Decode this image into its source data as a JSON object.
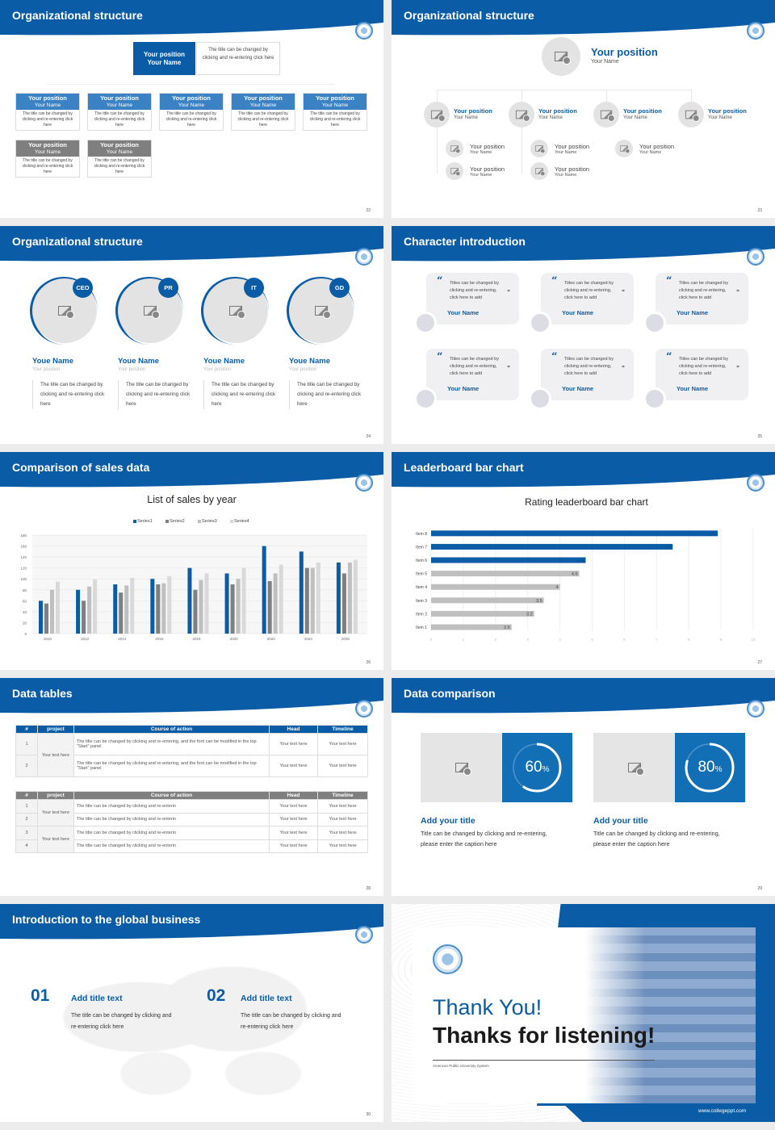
{
  "colors": {
    "brand": "#0b5ca6",
    "card_blue": "#3a82c4",
    "card_gray": "#7f7f7f",
    "placeholder": "#e3e3e3"
  },
  "s22": {
    "title": "Organizational structure",
    "page": "22",
    "top": {
      "position": "Your position",
      "name": "Your Name",
      "desc": "The title can be changed by clicking and re-entering click here"
    },
    "cards": [
      {
        "position": "Your position",
        "name": "Your Name",
        "desc": "The title can be changed by clicking and re-entering click here",
        "style": "blue"
      },
      {
        "position": "Your position",
        "name": "Your Name",
        "desc": "The title can be changed by clicking and re-entering click here",
        "style": "blue"
      },
      {
        "position": "Your position",
        "name": "Your Name",
        "desc": "The title can be changed by clicking and re-entering click here",
        "style": "blue"
      },
      {
        "position": "Your position",
        "name": "Your Name",
        "desc": "The title can be changed by clicking and re-entering click here",
        "style": "blue"
      },
      {
        "position": "Your position",
        "name": "Your Name",
        "desc": "The title can be changed by clicking and re-entering click here",
        "style": "blue"
      },
      {
        "position": "Your position",
        "name": "Your Name",
        "desc": "The title can be changed by clicking and re-entering click here",
        "style": "gray"
      },
      {
        "position": "Your position",
        "name": "Your Name",
        "desc": "The title can be changed by clicking and re-entering click here",
        "style": "gray"
      }
    ]
  },
  "s23": {
    "title": "Organizational structure",
    "page": "23",
    "top": {
      "position": "Your position",
      "name": "Your Name"
    },
    "mid": [
      {
        "position": "Your position",
        "name": "Your Name"
      },
      {
        "position": "Your position",
        "name": "Your Name"
      },
      {
        "position": "Your position",
        "name": "Your Name"
      },
      {
        "position": "Your position",
        "name": "Your Name"
      }
    ],
    "sub": [
      {
        "position": "Your position",
        "name": "Your Name"
      },
      {
        "position": "Your position",
        "name": "Your Name"
      },
      {
        "position": "Your position",
        "name": "Your Name"
      },
      {
        "position": "Your position",
        "name": "Your Name"
      },
      {
        "position": "Your position",
        "name": "Your Name"
      }
    ]
  },
  "s24": {
    "title": "Organizational structure",
    "page": "24",
    "people": [
      {
        "badge": "CEO",
        "name": "Youe Name",
        "position": "Your position",
        "desc": "The title can be changed by clicking and re-entering click here"
      },
      {
        "badge": "PR",
        "name": "Youe Name",
        "position": "Your position",
        "desc": "The title can be changed by clicking and re-entering click here"
      },
      {
        "badge": "IT",
        "name": "Youe Name",
        "position": "Your position",
        "desc": "The title can be changed by clicking and re-entering click here"
      },
      {
        "badge": "GD",
        "name": "Youe Name",
        "position": "Your position",
        "desc": "The title can be changed by clicking and re-entering click here"
      }
    ]
  },
  "s25": {
    "title": "Character introduction",
    "page": "25",
    "quotes": [
      {
        "text": "Titles can be changed by clicking and re-entering, click here to add",
        "name": "Your Name"
      },
      {
        "text": "Titles can be changed by clicking and re-entering, click here to add",
        "name": "Your Name"
      },
      {
        "text": "Titles can be changed by clicking and re-entering, click here to add",
        "name": "Your Name"
      },
      {
        "text": "Titles can be changed by clicking and re-entering, click here to add",
        "name": "Your Name"
      },
      {
        "text": "Titles can be changed by clicking and re-entering, click here to add",
        "name": "Your Name"
      },
      {
        "text": "Titles can be changed by clicking and re-entering, click here to add",
        "name": "Your Name"
      }
    ]
  },
  "s26": {
    "title": "Comparison of sales data",
    "page": "26"
  },
  "s27": {
    "title": "Leaderboard bar chart",
    "page": "27"
  },
  "chart_data": [
    {
      "type": "bar",
      "title": "List of sales by year",
      "legend": "top",
      "grid": true,
      "categories": [
        "2010",
        "2012",
        "2014",
        "2016",
        "2018",
        "2020",
        "2022",
        "2024",
        "2026"
      ],
      "ylim": [
        0,
        180
      ],
      "yticks": [
        0,
        20,
        40,
        60,
        80,
        100,
        120,
        140,
        160,
        180
      ],
      "series": [
        {
          "name": "Series1",
          "color": "#0b5ca6",
          "values": [
            60,
            80,
            90,
            100,
            120,
            110,
            160,
            150,
            130
          ]
        },
        {
          "name": "Series2",
          "color": "#7f7f7f",
          "values": [
            55,
            60,
            75,
            90,
            80,
            90,
            96,
            120,
            110
          ]
        },
        {
          "name": "Series3",
          "color": "#bfbfbf",
          "values": [
            80,
            86,
            88,
            92,
            98,
            100,
            110,
            120,
            130
          ]
        },
        {
          "name": "Series4",
          "color": "#d9d9d9",
          "values": [
            95,
            99,
            102,
            105,
            110,
            120,
            126,
            130,
            135
          ]
        }
      ]
    },
    {
      "type": "bar",
      "orientation": "horizontal",
      "title": "Rating leaderboard bar chart",
      "grid": true,
      "categories": [
        "Item 1",
        "Item 2",
        "Item 3",
        "Item 4",
        "Item 5",
        "Item 6",
        "Item 7",
        "Item 8"
      ],
      "values": [
        2.5,
        3.2,
        3.5,
        4,
        4.6,
        4.8,
        7.5,
        8.9
      ],
      "highlight_colors": [
        "#bfbfbf",
        "#bfbfbf",
        "#bfbfbf",
        "#bfbfbf",
        "#bfbfbf",
        "#0b5ca6",
        "#0b5ca6",
        "#0b5ca6"
      ],
      "xlim": [
        0,
        10
      ],
      "xticks": [
        0,
        1,
        2,
        3,
        4,
        5,
        6,
        7,
        8,
        9,
        10
      ]
    }
  ],
  "s28": {
    "title": "Data tables",
    "page": "28",
    "headers": [
      "#",
      "project",
      "Course of action",
      "Head",
      "Timeline"
    ],
    "table1": {
      "project": "Your text here",
      "rows": [
        {
          "n": "1",
          "action": "The title can be changed by clicking and re-entering, and the font can be modified in the top \"Start\" panel",
          "head": "Your text here",
          "timeline": "Your text here"
        },
        {
          "n": "2",
          "action": "The title can be changed by clicking and re-entering, and the font can be modified in the top \"Start\" panel",
          "head": "Your text here",
          "timeline": "Your text here"
        }
      ]
    },
    "table2": {
      "projects": [
        "Your text here",
        "Your text here"
      ],
      "rows": [
        {
          "n": "1",
          "action": "The title can be changed by clicking and re-enterin",
          "head": "Your text here",
          "timeline": "Your text here"
        },
        {
          "n": "2",
          "action": "The title can be changed by clicking and re-enterin",
          "head": "Your text here",
          "timeline": "Your text here"
        },
        {
          "n": "3",
          "action": "The title can be changed by clicking and re-enterin",
          "head": "Your text here",
          "timeline": "Your text here"
        },
        {
          "n": "4",
          "action": "The title can be changed by clicking and re-enterin",
          "head": "Your text here",
          "timeline": "Your text here"
        }
      ]
    }
  },
  "s29": {
    "title": "Data comparison",
    "page": "29",
    "items": [
      {
        "percent": 60,
        "value": "60",
        "unit": "%",
        "title": "Add your title",
        "caption": "Title can be changed by clicking and re-entering, please enter the caption here"
      },
      {
        "percent": 80,
        "value": "80",
        "unit": "%",
        "title": "Add your title",
        "caption": "Title can be changed by clicking and re-entering, please enter the caption here"
      }
    ]
  },
  "s30": {
    "title": "Introduction to the global business",
    "page": "30",
    "items": [
      {
        "num": "01",
        "title": "Add title text",
        "desc": "The title can be changed by clicking and re-entering click here"
      },
      {
        "num": "02",
        "title": "Add title text",
        "desc": "The title can be changed by clicking and re-entering click here"
      }
    ]
  },
  "s31": {
    "line1": "Thank You!",
    "line2": "Thanks for listening!",
    "org": "American Public University System",
    "url": "www.collegeppt.com"
  }
}
